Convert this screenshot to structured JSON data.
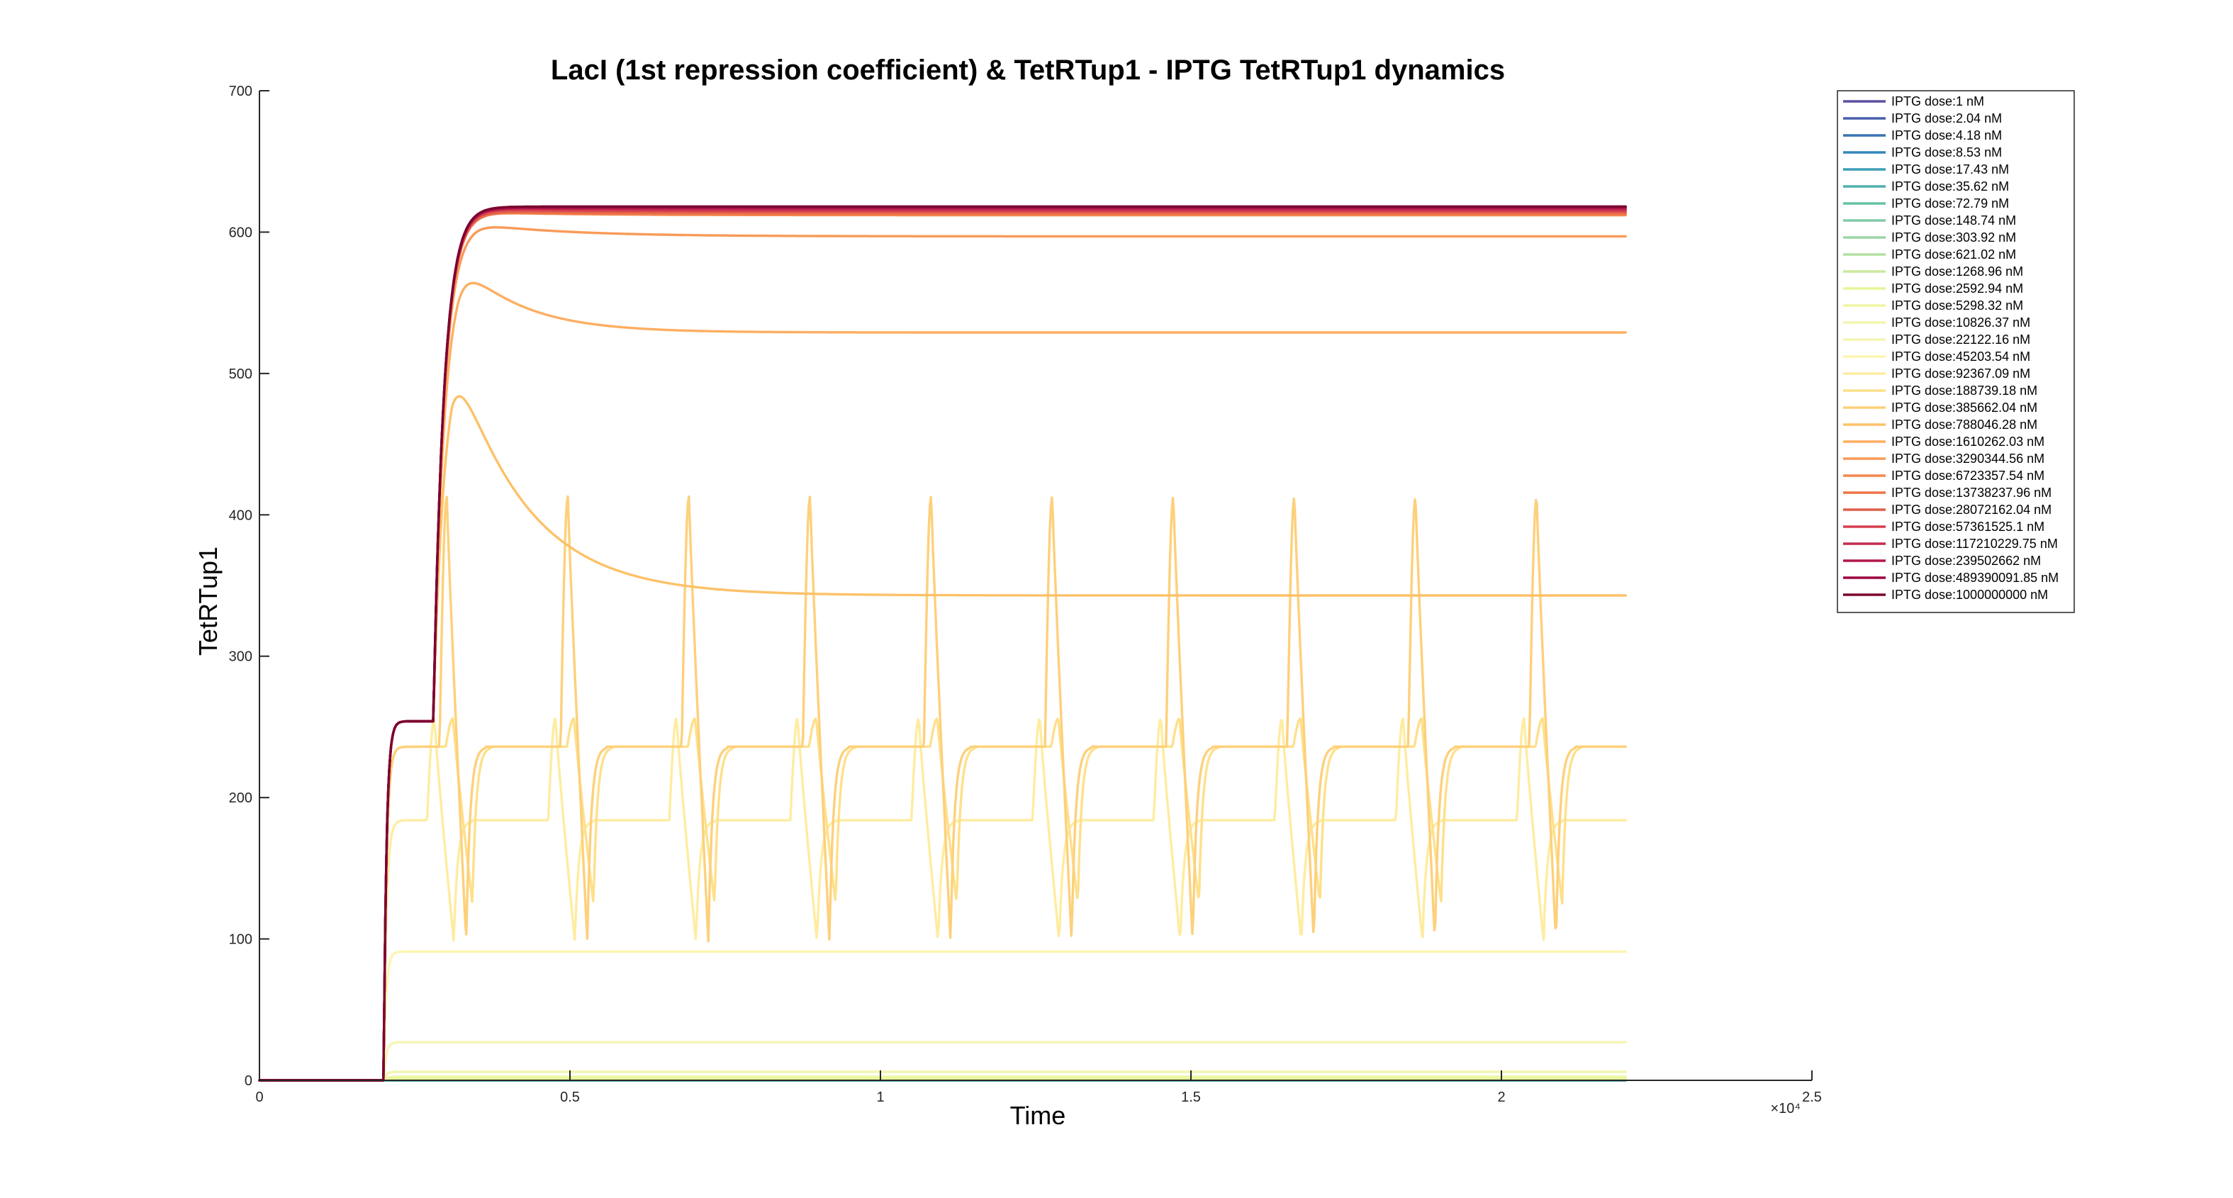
{
  "chart_data": {
    "type": "line",
    "title": "LacI (1st repression coefficient) & TetRTup1 - IPTG TetRTup1 dynamics",
    "xlabel": "Time",
    "ylabel": "TetRTup1",
    "xlim": [
      0,
      25000
    ],
    "ylim": [
      0,
      700
    ],
    "x_exponent_label": "×10⁴",
    "x_ticks": [
      0,
      5000,
      10000,
      15000,
      20000,
      25000
    ],
    "x_tick_labels": [
      "0",
      "0.5",
      "1",
      "1.5",
      "2",
      "2.5"
    ],
    "y_ticks": [
      0,
      100,
      200,
      300,
      400,
      500,
      600,
      700
    ],
    "y_tick_labels": [
      "0",
      "100",
      "200",
      "300",
      "400",
      "500",
      "600",
      "700"
    ],
    "grid": false,
    "legend_position": "top-right outside",
    "colors": [
      "#5e4fa2",
      "#4a5fac",
      "#3a73b3",
      "#3288bd",
      "#3d9db9",
      "#4fb0ae",
      "#66c2a5",
      "#80cca5",
      "#9bd6a4",
      "#b3e0a2",
      "#cbe99d",
      "#e6f598",
      "#eef6a2",
      "#f2f5ae",
      "#f7f4b4",
      "#fef5b0",
      "#feeca0",
      "#fee08b",
      "#fdd07a",
      "#fdc168",
      "#fdae61",
      "#f99a57",
      "#f4874e",
      "#ee7548",
      "#e15e4a",
      "#d53e4f",
      "#c42c52",
      "#b1174a",
      "#9e0142",
      "#7a0530"
    ],
    "series": [
      {
        "name": "IPTG dose:1 nM",
        "kind": "const",
        "level": 0
      },
      {
        "name": "IPTG dose:2.04 nM",
        "kind": "const",
        "level": 0
      },
      {
        "name": "IPTG dose:4.18 nM",
        "kind": "const",
        "level": 0
      },
      {
        "name": "IPTG dose:8.53 nM",
        "kind": "const",
        "level": 0
      },
      {
        "name": "IPTG dose:17.43 nM",
        "kind": "const",
        "level": 0
      },
      {
        "name": "IPTG dose:35.62 nM",
        "kind": "const",
        "level": 0
      },
      {
        "name": "IPTG dose:72.79 nM",
        "kind": "const",
        "level": 0.2
      },
      {
        "name": "IPTG dose:148.74 nM",
        "kind": "const",
        "level": 0.3
      },
      {
        "name": "IPTG dose:303.92 nM",
        "kind": "const",
        "level": 0.4
      },
      {
        "name": "IPTG dose:621.02 nM",
        "kind": "const",
        "level": 0.6
      },
      {
        "name": "IPTG dose:1268.96 nM",
        "kind": "const",
        "level": 0.8
      },
      {
        "name": "IPTG dose:2592.94 nM",
        "kind": "const",
        "level": 1.2
      },
      {
        "name": "IPTG dose:5298.32 nM",
        "kind": "const",
        "level": 2.5
      },
      {
        "name": "IPTG dose:10826.37 nM",
        "kind": "const",
        "level": 6
      },
      {
        "name": "IPTG dose:22122.16 nM",
        "kind": "const",
        "level": 27
      },
      {
        "name": "IPTG dose:45203.54 nM",
        "kind": "const",
        "level": 91
      },
      {
        "name": "IPTG dose:92367.09 nM",
        "kind": "osc",
        "low": 98,
        "high": 256,
        "plateau": 184,
        "period": 1950,
        "phase": 2700
      },
      {
        "name": "IPTG dose:188739.18 nM",
        "kind": "osc",
        "low": 125,
        "high": 256,
        "plateau": 236,
        "period": 1950,
        "phase": 3000
      },
      {
        "name": "IPTG dose:385662.04 nM",
        "kind": "osc",
        "low": 98,
        "high": 413,
        "plateau": 236,
        "period": 1950,
        "phase": 2900
      },
      {
        "name": "IPTG dose:788046.28 nM",
        "kind": "decay",
        "peak": 522,
        "final": 343,
        "tpeak": 3100,
        "tau": 1150
      },
      {
        "name": "IPTG dose:1610262.03 nM",
        "kind": "decay",
        "peak": 581,
        "final": 529,
        "tpeak": 3200,
        "tau": 1000
      },
      {
        "name": "IPTG dose:3290344.56 nM",
        "kind": "decay",
        "peak": 606,
        "final": 597,
        "tpeak": 3450,
        "tau": 1500
      },
      {
        "name": "IPTG dose:6723357.54 nM",
        "kind": "decay",
        "peak": 614,
        "final": 612,
        "tpeak": 3600,
        "tau": 1500
      },
      {
        "name": "IPTG dose:13738237.96 nM",
        "kind": "decay",
        "peak": 614,
        "final": 613,
        "tpeak": 3700,
        "tau": 1500
      },
      {
        "name": "IPTG dose:28072162.04 nM",
        "kind": "decay",
        "peak": 615,
        "final": 614,
        "tpeak": 3800,
        "tau": 1500
      },
      {
        "name": "IPTG dose:57361525.1 nM",
        "kind": "decay",
        "peak": 616,
        "final": 615,
        "tpeak": 3900,
        "tau": 1500
      },
      {
        "name": "IPTG dose:117210229.75 nM",
        "kind": "decay",
        "peak": 617,
        "final": 616,
        "tpeak": 4000,
        "tau": 1500
      },
      {
        "name": "IPTG dose:239502662 nM",
        "kind": "decay",
        "peak": 617,
        "final": 617,
        "tpeak": 4000,
        "tau": 1500
      },
      {
        "name": "IPTG dose:489390091.85 nM",
        "kind": "decay",
        "peak": 618,
        "final": 618,
        "tpeak": 4000,
        "tau": 1500
      },
      {
        "name": "IPTG dose:1000000000 nM",
        "kind": "decay",
        "peak": 618,
        "final": 618,
        "tpeak": 4000,
        "tau": 1500
      }
    ],
    "x_end": 22000,
    "step_on": 2000,
    "first_plateau": 254,
    "second_rise": 2800
  }
}
